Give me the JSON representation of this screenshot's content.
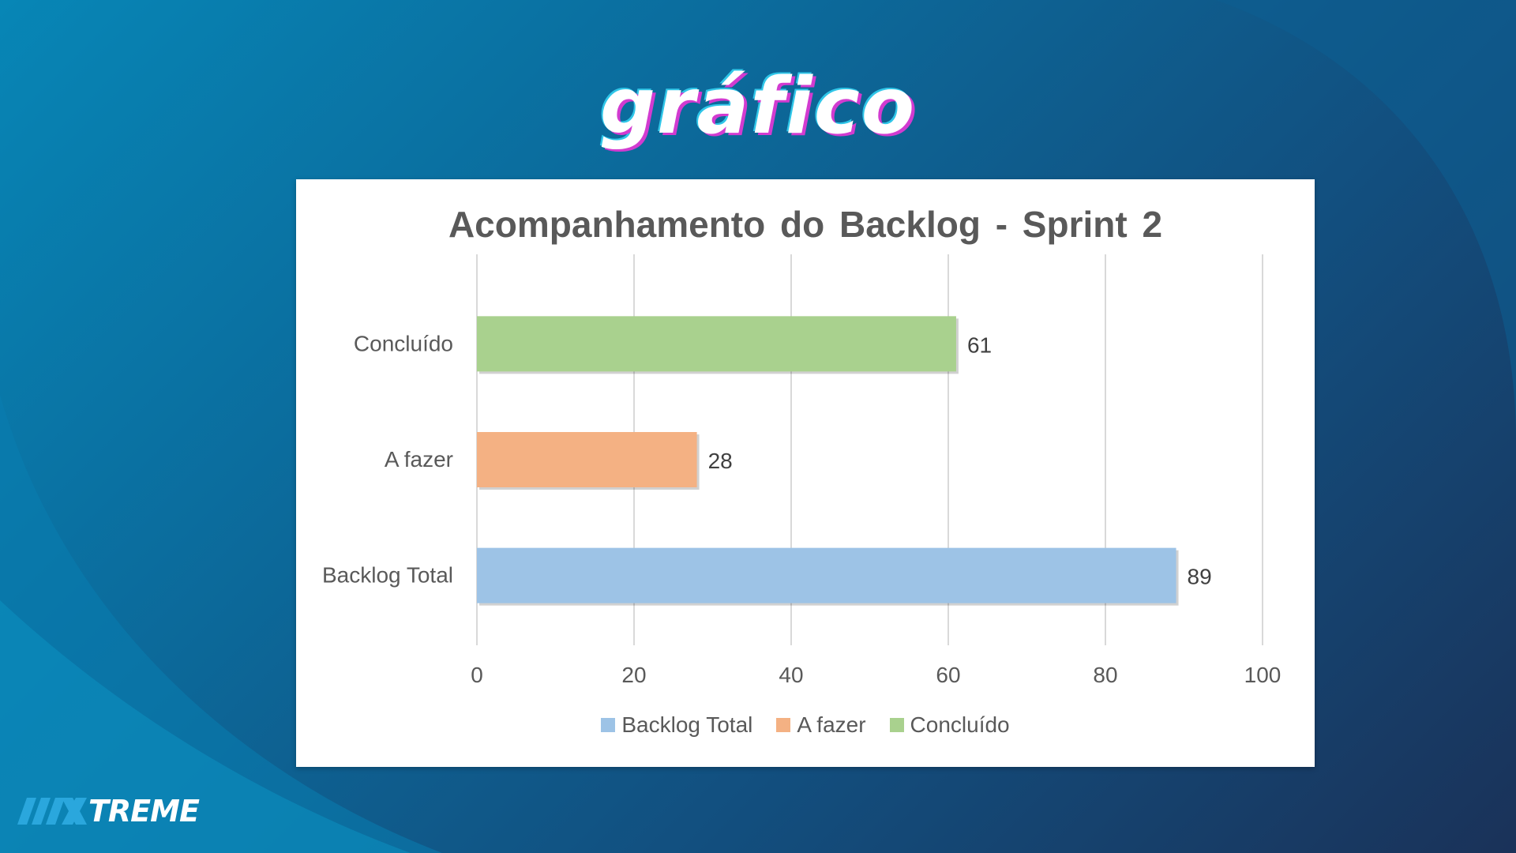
{
  "slide": {
    "title": "gráfico"
  },
  "brand": {
    "name": "TREME",
    "accent": "#2aa7dd"
  },
  "chart_data": {
    "type": "bar",
    "orientation": "horizontal",
    "title": "Acompanhamento do Backlog - Sprint 2",
    "categories": [
      "Concluído",
      "A fazer",
      "Backlog Total"
    ],
    "values": [
      61,
      28,
      89
    ],
    "colors": [
      "#a9d18e",
      "#f4b183",
      "#9dc3e6"
    ],
    "xlim": [
      0,
      100
    ],
    "xticks": [
      "0",
      "20",
      "40",
      "60",
      "80",
      "100"
    ],
    "grid": true,
    "legend_position": "bottom",
    "legend": [
      {
        "label": "Backlog Total",
        "color": "#9dc3e6"
      },
      {
        "label": "A fazer",
        "color": "#f4b183"
      },
      {
        "label": "Concluído",
        "color": "#a9d18e"
      }
    ]
  }
}
